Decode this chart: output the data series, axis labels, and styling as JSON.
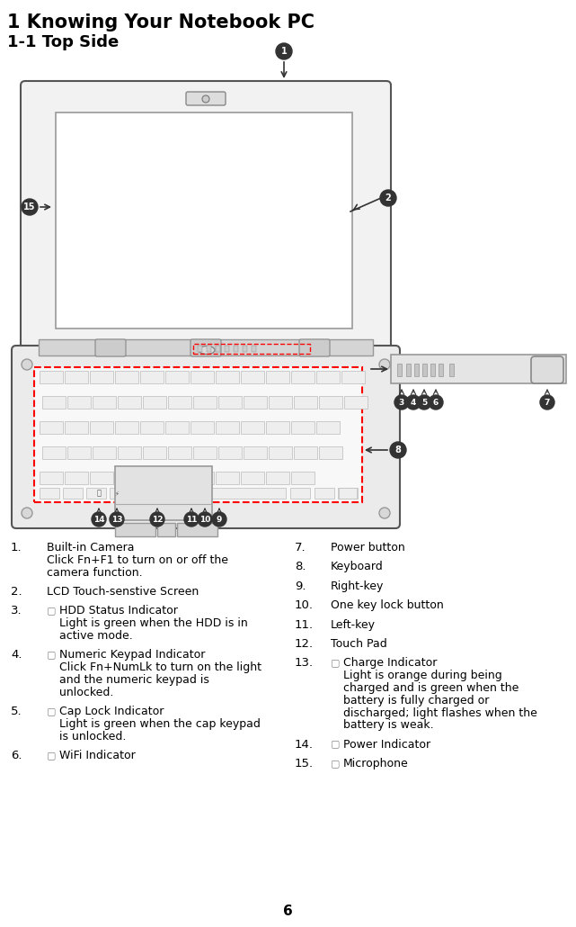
{
  "title1": "1 Knowing Your Notebook PC",
  "title2": "1-1 Top Side",
  "title1_fontsize": 15,
  "title2_fontsize": 13,
  "page_number": "6",
  "bg_color": "#ffffff",
  "text_color": "#000000",
  "left_items": [
    {
      "num": "1.",
      "icon": false,
      "lines": [
        "Built-in Camera",
        "Click Fn+F1 to turn on or off the",
        "camera function."
      ]
    },
    {
      "num": "2.",
      "icon": false,
      "lines": [
        "LCD Touch-senstive Screen"
      ]
    },
    {
      "num": "3.",
      "icon": true,
      "lines": [
        "HDD Status Indicator",
        "Light is green when the HDD is in",
        "active mode."
      ]
    },
    {
      "num": "4.",
      "icon": true,
      "lines": [
        "Numeric Keypad Indicator",
        "Click Fn+NumLk to turn on the light",
        "and the numeric keypad is",
        "unlocked."
      ]
    },
    {
      "num": "5.",
      "icon": true,
      "lines": [
        "Cap Lock Indicator",
        "Light is green when the cap keypad",
        "is unlocked."
      ]
    },
    {
      "num": "6.",
      "icon": true,
      "lines": [
        "WiFi Indicator"
      ]
    }
  ],
  "right_items": [
    {
      "num": "7.",
      "icon": false,
      "lines": [
        "Power button"
      ]
    },
    {
      "num": "8.",
      "icon": false,
      "lines": [
        "Keyboard"
      ]
    },
    {
      "num": "9.",
      "icon": false,
      "lines": [
        "Right-key"
      ]
    },
    {
      "num": "10.",
      "icon": false,
      "lines": [
        "One key lock button"
      ]
    },
    {
      "num": "11.",
      "icon": false,
      "lines": [
        "Left-key"
      ]
    },
    {
      "num": "12.",
      "icon": false,
      "lines": [
        "Touch Pad"
      ]
    },
    {
      "num": "13.",
      "icon": true,
      "lines": [
        "Charge Indicator",
        "Light is orange during being",
        "charged and is green when the",
        "battery is fully charged or",
        "discharged; light flashes when the",
        "battery is weak."
      ]
    },
    {
      "num": "14.",
      "icon": true,
      "lines": [
        "Power Indicator"
      ]
    },
    {
      "num": "15.",
      "icon": true,
      "lines": [
        "Microphone"
      ]
    }
  ]
}
